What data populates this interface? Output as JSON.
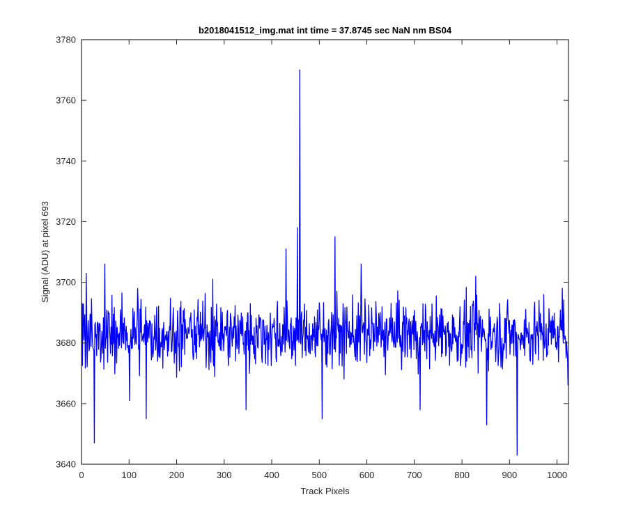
{
  "chart_data": {
    "type": "line",
    "title": "b2018041512_img.mat int time = 37.8745 sec  NaN nm BS04",
    "xlabel": "Track Pixels",
    "ylabel": "Signal (ADU) at pixel 693",
    "xlim": [
      0,
      1024
    ],
    "ylim": [
      3640,
      3780
    ],
    "xticks": [
      0,
      100,
      200,
      300,
      400,
      500,
      600,
      700,
      800,
      900,
      1000
    ],
    "yticks": [
      3640,
      3660,
      3680,
      3700,
      3720,
      3740,
      3760,
      3780
    ],
    "grid": false,
    "legend": "none",
    "line_color": "#0000ff",
    "series": [
      {
        "n_points": 1024,
        "baseline": 3683,
        "noise_range": [
          3663,
          3705
        ],
        "notable_points": [
          {
            "x": 10,
            "y": 3703
          },
          {
            "x": 27,
            "y": 3647
          },
          {
            "x": 49,
            "y": 3706
          },
          {
            "x": 101,
            "y": 3661
          },
          {
            "x": 118,
            "y": 3698
          },
          {
            "x": 136,
            "y": 3655
          },
          {
            "x": 276,
            "y": 3701
          },
          {
            "x": 346,
            "y": 3658
          },
          {
            "x": 430,
            "y": 3711
          },
          {
            "x": 454,
            "y": 3718
          },
          {
            "x": 459,
            "y": 3770
          },
          {
            "x": 506,
            "y": 3655
          },
          {
            "x": 533,
            "y": 3715
          },
          {
            "x": 588,
            "y": 3706
          },
          {
            "x": 712,
            "y": 3658
          },
          {
            "x": 829,
            "y": 3702
          },
          {
            "x": 852,
            "y": 3653
          },
          {
            "x": 916,
            "y": 3643
          },
          {
            "x": 1011,
            "y": 3698
          },
          {
            "x": 1023,
            "y": 3666
          }
        ]
      }
    ]
  }
}
